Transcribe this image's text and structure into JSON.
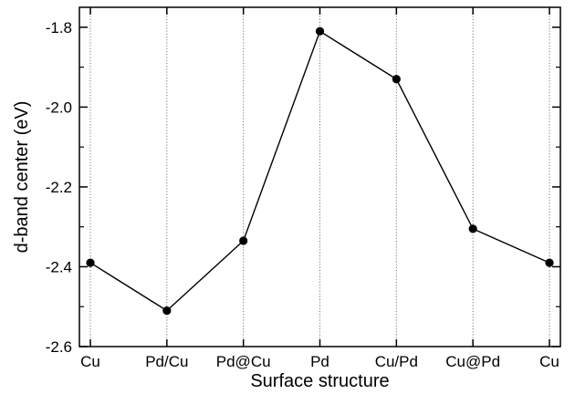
{
  "chart_data": {
    "type": "line",
    "title": "",
    "xlabel": "Surface structure",
    "ylabel": "d-band center (eV)",
    "categories": [
      "Cu",
      "Pd/Cu",
      "Pd@Cu",
      "Pd",
      "Cu/Pd",
      "Cu@Pd",
      "Cu"
    ],
    "values": [
      -2.39,
      -2.51,
      -2.335,
      -1.81,
      -1.93,
      -2.305,
      -2.39
    ],
    "ylim": [
      -2.6,
      -1.75
    ],
    "yticks": [
      -2.6,
      -2.4,
      -2.2,
      -2.0,
      -1.8
    ],
    "ytick_labels": [
      "-2.6",
      "-2.4",
      "-2.2",
      "-2.0",
      "-1.8"
    ],
    "grid": "vertical dotted lines at each category",
    "colors": {
      "line": "#000000",
      "marker": "#000000",
      "grid": "#777777"
    }
  }
}
